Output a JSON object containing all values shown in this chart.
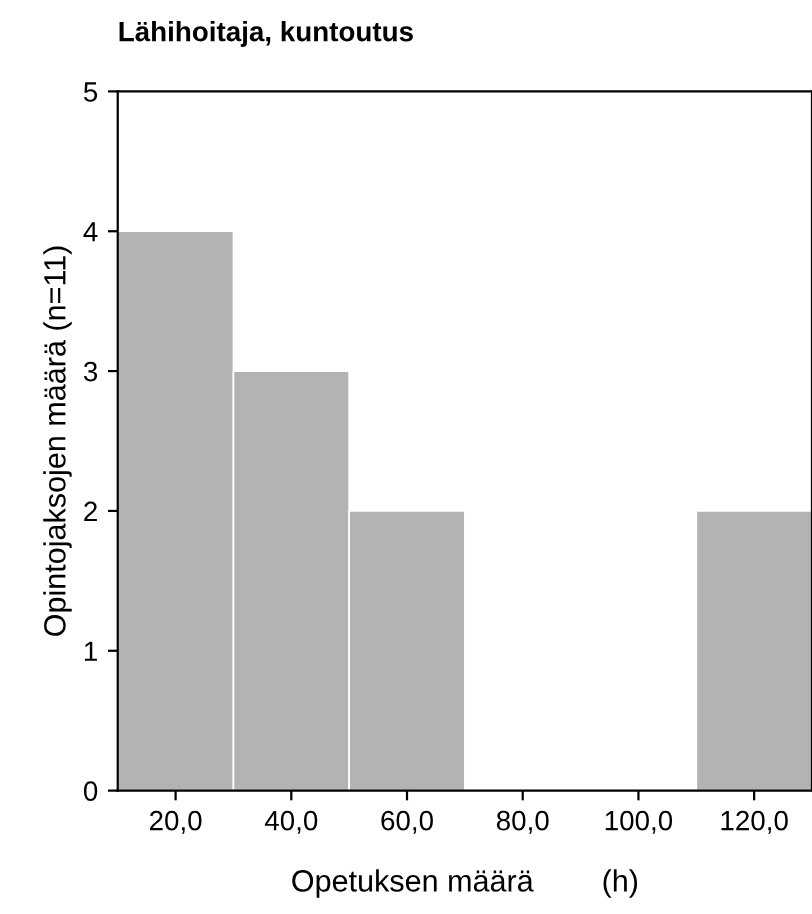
{
  "chart_data": {
    "type": "histogram",
    "title": "Lähihoitaja, kuntoutus",
    "xlabel": "Opetuksen määrä        (h)",
    "ylabel": "Opintojaksojen määrä (n=11)",
    "bins": [
      10,
      30,
      50,
      70,
      90,
      110,
      130
    ],
    "values": [
      4,
      3,
      2,
      0,
      0,
      2
    ],
    "color": "#b3b3b3",
    "xlim": [
      10,
      130
    ],
    "xticks": [
      {
        "value": 20,
        "label": "20,0"
      },
      {
        "value": 40,
        "label": "40,0"
      },
      {
        "value": 60,
        "label": "60,0"
      },
      {
        "value": 80,
        "label": "80,0"
      },
      {
        "value": 100,
        "label": "100,0"
      },
      {
        "value": 120,
        "label": "120,0"
      }
    ],
    "ylim": [
      0,
      5
    ],
    "yticks": [
      0,
      1,
      2,
      3,
      4,
      5
    ],
    "grid": false
  }
}
